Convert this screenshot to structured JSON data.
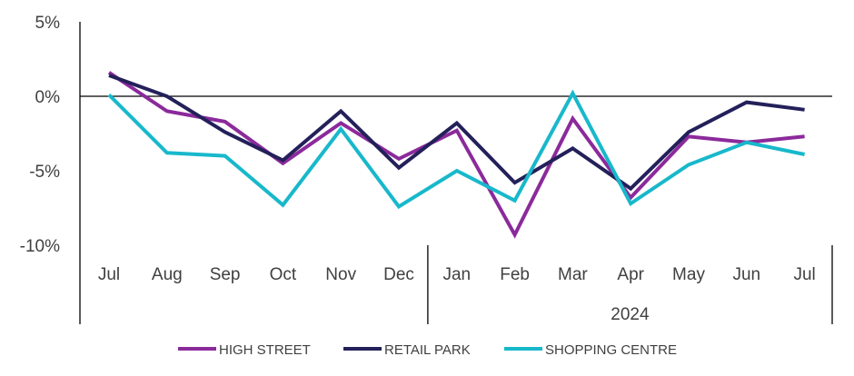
{
  "chart_data": {
    "type": "line",
    "title": "",
    "xlabel": "",
    "ylabel": "",
    "categories": [
      "Jul",
      "Aug",
      "Sep",
      "Oct",
      "Nov",
      "Dec",
      "Jan",
      "Feb",
      "Mar",
      "Apr",
      "May",
      "Jun",
      "Jul"
    ],
    "year_label": "2024",
    "year_group_start_index": 6,
    "ylim": [
      -10,
      5
    ],
    "yticks": [
      5,
      0,
      -5,
      -10
    ],
    "ytick_labels": [
      "5%",
      "0%",
      "-5%",
      "-10%"
    ],
    "grid": false,
    "legend_position": "bottom",
    "series": [
      {
        "name": "HIGH STREET",
        "color": "#8B2A9B",
        "values": [
          1.6,
          -1.0,
          -1.7,
          -4.5,
          -1.8,
          -4.2,
          -2.3,
          -9.3,
          -1.5,
          -6.8,
          -2.7,
          -3.1,
          -2.7
        ]
      },
      {
        "name": "RETAIL PARK",
        "color": "#23205A",
        "values": [
          1.4,
          0.0,
          -2.4,
          -4.3,
          -1.0,
          -4.8,
          -1.8,
          -5.8,
          -3.5,
          -6.2,
          -2.4,
          -0.4,
          -0.9
        ]
      },
      {
        "name": "SHOPPING CENTRE",
        "color": "#18B8CB",
        "values": [
          0.1,
          -3.8,
          -4.0,
          -7.3,
          -2.2,
          -7.4,
          -5.0,
          -7.0,
          0.2,
          -7.2,
          -4.6,
          -3.1,
          -3.9
        ]
      }
    ]
  }
}
